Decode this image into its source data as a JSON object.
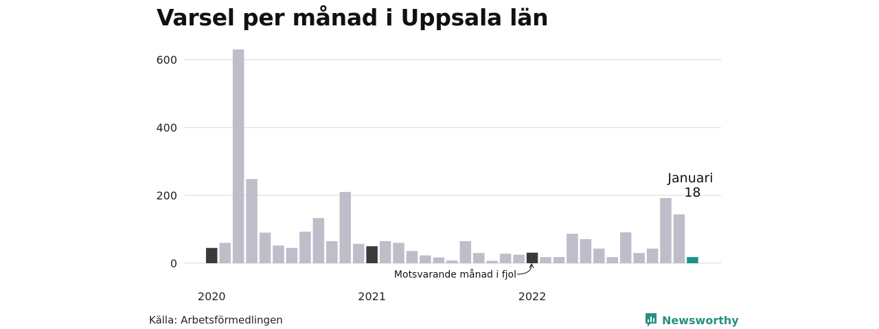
{
  "title": "Varsel per månad i Uppsala län",
  "source": "Källa: Arbetsförmedlingen",
  "brand": {
    "name": "Newsworthy",
    "icon": "newsworthy-logo-icon"
  },
  "colors": {
    "default": "#bebdca",
    "previous_year": "#3a3a3a",
    "latest": "#17938a",
    "grid": "#dddddd"
  },
  "annotation": {
    "text": "Motsvarande månad i fjol"
  },
  "latest_label": {
    "month": "Januari",
    "value": "18"
  },
  "chart_data": {
    "type": "bar",
    "title": "Varsel per månad i Uppsala län",
    "ylim": [
      0,
      650
    ],
    "yticks": [
      "0",
      "200",
      "400",
      "600"
    ],
    "ytick_values": [
      0,
      200,
      400,
      600
    ],
    "grid": true,
    "xtick_labels": [
      {
        "label": "2020",
        "index": 0
      },
      {
        "label": "2021",
        "index": 12
      },
      {
        "label": "2022",
        "index": 24
      }
    ],
    "values": [
      45,
      60,
      630,
      248,
      90,
      52,
      45,
      93,
      133,
      65,
      210,
      57,
      50,
      65,
      60,
      36,
      23,
      17,
      8,
      65,
      30,
      7,
      28,
      25,
      31,
      18,
      18,
      87,
      71,
      43,
      18,
      91,
      30,
      43,
      192,
      144,
      18
    ],
    "highlight": {
      "previous_year": [
        0,
        12,
        24
      ],
      "latest": 36
    }
  }
}
